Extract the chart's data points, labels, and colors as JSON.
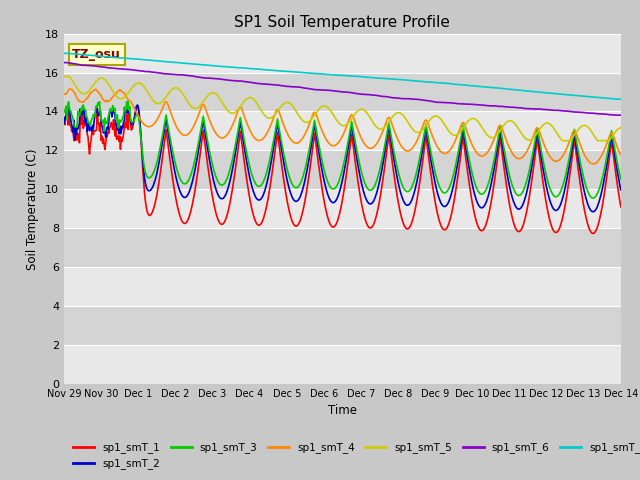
{
  "title": "SP1 Soil Temperature Profile",
  "xlabel": "Time",
  "ylabel": "Soil Temperature (C)",
  "ylim": [
    0,
    18
  ],
  "yticks": [
    0,
    2,
    4,
    6,
    8,
    10,
    12,
    14,
    16,
    18
  ],
  "xtick_labels": [
    "Nov 29",
    "Nov 30",
    "Dec 1",
    "Dec 2",
    "Dec 3",
    "Dec 4",
    "Dec 5",
    "Dec 6",
    "Dec 7",
    "Dec 8",
    "Dec 9",
    "Dec 10",
    "Dec 11",
    "Dec 12",
    "Dec 13",
    "Dec 14"
  ],
  "series_colors": {
    "sp1_smT_1": "#ff0000",
    "sp1_smT_2": "#0000cc",
    "sp1_smT_3": "#00cc00",
    "sp1_smT_4": "#ff8800",
    "sp1_smT_5": "#cccc00",
    "sp1_smT_6": "#8800cc",
    "sp1_smT_7": "#00cccc"
  },
  "annotation_text": "TZ_osu",
  "annotation_color": "#880000",
  "annotation_box_facecolor": "#ffffcc",
  "annotation_box_edgecolor": "#aaa800",
  "fig_facecolor": "#c8c8c8",
  "plot_facecolor": "#e0e0e0",
  "band_color_light": "#e8e8e8",
  "band_color_dark": "#d4d4d4",
  "grid_color": "#ffffff",
  "linewidth": 1.2
}
